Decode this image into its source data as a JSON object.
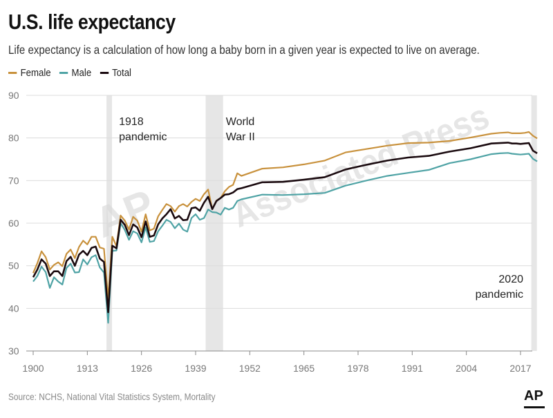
{
  "title": "U.S. life expectancy",
  "subtitle": "Life expectancy is a calculation of how long a baby born in a given year is expected to live on average.",
  "source": "Source: NCHS, National Vital Statistics System, Mortality",
  "logo": "AP",
  "watermark": {
    "logo_text": "AP",
    "text": "Associated Press"
  },
  "colors": {
    "female": "#c8913c",
    "male": "#4fa3a5",
    "total": "#1a0a0f",
    "band": "#e6e6e6",
    "grid": "#dcdcdc",
    "axis": "#888888"
  },
  "chart_data": {
    "type": "line",
    "title": "U.S. life expectancy",
    "xlabel": "",
    "ylabel": "",
    "xlim": [
      1900,
      2021
    ],
    "ylim": [
      30,
      90
    ],
    "x_ticks": [
      "1900",
      "1913",
      "1926",
      "1939",
      "1952",
      "1965",
      "1978",
      "1991",
      "2004",
      "2017"
    ],
    "y_ticks": [
      "30",
      "40",
      "50",
      "60",
      "70",
      "80",
      "90"
    ],
    "grid": true,
    "legend": "top-left",
    "x": [
      1900,
      1901,
      1902,
      1903,
      1904,
      1905,
      1906,
      1907,
      1908,
      1909,
      1910,
      1911,
      1912,
      1913,
      1914,
      1915,
      1916,
      1917,
      1918,
      1919,
      1920,
      1921,
      1922,
      1923,
      1924,
      1925,
      1926,
      1927,
      1928,
      1929,
      1930,
      1931,
      1932,
      1933,
      1934,
      1935,
      1936,
      1937,
      1938,
      1939,
      1940,
      1941,
      1942,
      1943,
      1944,
      1945,
      1946,
      1947,
      1948,
      1949,
      1950,
      1955,
      1960,
      1965,
      1970,
      1975,
      1980,
      1985,
      1990,
      1995,
      2000,
      2005,
      2010,
      2012,
      2014,
      2015,
      2016,
      2017,
      2018,
      2019,
      2020,
      2021
    ],
    "series": [
      {
        "name": "Female",
        "values": [
          48.3,
          50.6,
          53.4,
          52.0,
          49.1,
          50.2,
          50.8,
          49.9,
          52.8,
          53.8,
          51.8,
          54.4,
          55.9,
          55.0,
          56.8,
          56.8,
          54.3,
          54.0,
          42.2,
          56.8,
          54.6,
          61.8,
          60.6,
          58.5,
          61.5,
          60.6,
          58.0,
          62.1,
          58.3,
          58.7,
          61.6,
          63.1,
          64.5,
          64.0,
          62.7,
          64.0,
          64.5,
          63.9,
          65.0,
          65.7,
          65.2,
          66.8,
          67.9,
          63.3,
          65.3,
          65.9,
          67.5,
          68.5,
          69.0,
          71.7,
          71.1,
          72.8,
          73.1,
          73.8,
          74.7,
          76.6,
          77.4,
          78.2,
          78.8,
          78.9,
          79.3,
          80.1,
          81.0,
          81.2,
          81.3,
          81.1,
          81.1,
          81.1,
          81.2,
          81.4,
          80.5,
          79.9
        ]
      },
      {
        "name": "Male",
        "values": [
          46.3,
          47.6,
          49.8,
          48.5,
          44.8,
          47.3,
          46.3,
          45.6,
          49.5,
          50.5,
          48.4,
          48.5,
          51.5,
          50.3,
          52.0,
          52.5,
          49.6,
          48.4,
          36.6,
          53.5,
          53.6,
          60.0,
          58.4,
          56.1,
          58.1,
          57.6,
          55.5,
          59.0,
          55.6,
          55.8,
          58.1,
          59.4,
          60.8,
          60.3,
          58.8,
          59.9,
          58.5,
          58.0,
          61.2,
          62.1,
          60.8,
          61.2,
          63.2,
          62.6,
          62.5,
          62.0,
          63.6,
          63.2,
          63.6,
          65.2,
          65.6,
          66.7,
          66.6,
          66.8,
          67.1,
          68.8,
          70.0,
          71.1,
          71.8,
          72.5,
          74.1,
          75.0,
          76.2,
          76.4,
          76.5,
          76.3,
          76.2,
          76.1,
          76.2,
          76.3,
          75.1,
          74.5
        ]
      },
      {
        "name": "Total",
        "values": [
          47.3,
          49.1,
          51.5,
          50.5,
          47.6,
          48.7,
          48.7,
          47.6,
          51.1,
          52.1,
          50.0,
          52.6,
          53.5,
          52.5,
          54.2,
          54.5,
          51.7,
          50.9,
          39.1,
          54.7,
          54.1,
          60.8,
          59.6,
          57.2,
          59.7,
          59.0,
          56.7,
          60.4,
          56.8,
          57.1,
          59.7,
          61.1,
          62.1,
          63.3,
          61.1,
          61.7,
          60.7,
          60.8,
          63.5,
          63.7,
          62.9,
          64.8,
          66.2,
          63.3,
          65.2,
          65.9,
          66.7,
          66.8,
          67.2,
          68.0,
          68.2,
          69.6,
          69.7,
          70.2,
          70.8,
          72.6,
          73.7,
          74.7,
          75.4,
          75.8,
          76.8,
          77.6,
          78.7,
          78.8,
          78.9,
          78.7,
          78.7,
          78.6,
          78.7,
          78.8,
          77.0,
          76.4
        ]
      }
    ],
    "bands": [
      {
        "label_line1": "1918",
        "label_line2": "pandemic",
        "from": 1917.6,
        "to": 1918.6
      },
      {
        "label_line1": "World",
        "label_line2": "War II",
        "from": 1941.4,
        "to": 1945.6
      },
      {
        "label_line1": "2020",
        "label_line2": "pandemic",
        "from": 2019.6,
        "to": 2020.6
      }
    ]
  }
}
